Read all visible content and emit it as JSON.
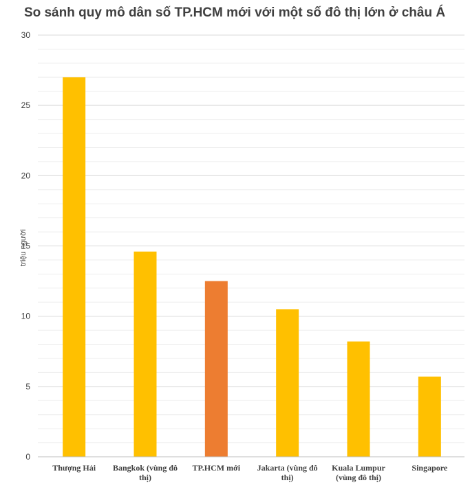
{
  "chart_data": {
    "type": "bar",
    "title": "So sánh quy mô dân số TP.HCM mới với một số đô thị lớn ở châu Á",
    "ylabel": "triệu người",
    "xlabel": "",
    "ylim": [
      0,
      30
    ],
    "yticks": [
      0,
      5,
      10,
      15,
      20,
      25,
      30
    ],
    "grid": true,
    "legend": "none",
    "categories": [
      [
        "Thượng Hải"
      ],
      [
        "Bangkok (vùng đô",
        "thị)"
      ],
      [
        "TP.HCM mới"
      ],
      [
        "Jakarta (vùng đô",
        "thị)"
      ],
      [
        "Kuala Lumpur",
        "(vùng đô thị)"
      ],
      [
        "Singapore"
      ]
    ],
    "values": [
      27,
      14.6,
      12.5,
      10.5,
      8.2,
      5.7
    ],
    "colors": [
      "#ffc000",
      "#ffc000",
      "#ed7d31",
      "#ffc000",
      "#ffc000",
      "#ffc000"
    ]
  }
}
